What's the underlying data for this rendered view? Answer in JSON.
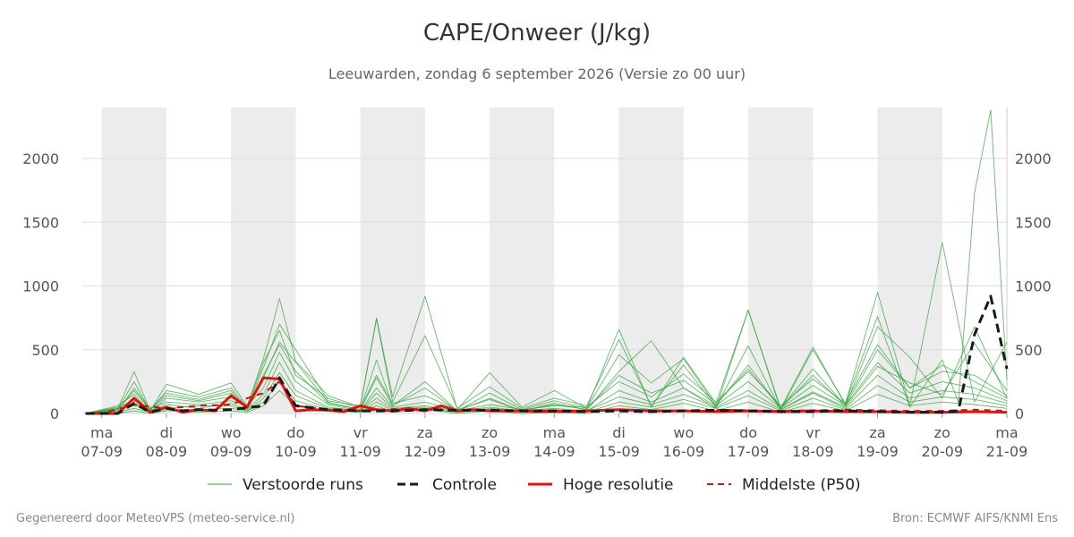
{
  "title": "CAPE/Onweer (J/kg)",
  "subtitle": "Leeuwarden, zondag  6 september 2026 (Versie zo 00 uur)",
  "footer": {
    "left": "Gegenereerd door MeteoVPS (meteo-service.nl)",
    "right": "Bron: ECMWF AIFS/KNMI Ens"
  },
  "colors": {
    "ensemble": "#33a33a",
    "control": "#1a1a1a",
    "high_res": "#e3120b",
    "median": "#b81c1c",
    "weekend_band": "#ececec",
    "grid": "#dddddd"
  },
  "chart_data": {
    "type": "line",
    "title": "CAPE/Onweer (J/kg)",
    "ylim": [
      0,
      2400
    ],
    "y_ticks": [
      "0",
      "500",
      "1000",
      "1500",
      "2000"
    ],
    "x_unit": "days since 06-09 00:00",
    "xlim": [
      0.7,
      15.0
    ],
    "shaded_day_intervals": [
      [
        1,
        2
      ],
      [
        3,
        4
      ],
      [
        5,
        6
      ],
      [
        7,
        8
      ],
      [
        9,
        10
      ],
      [
        11,
        12
      ],
      [
        13,
        14
      ]
    ],
    "x_ticks": [
      {
        "day": "ma",
        "date": "07-09"
      },
      {
        "day": "di",
        "date": "08-09"
      },
      {
        "day": "wo",
        "date": "09-09"
      },
      {
        "day": "do",
        "date": "10-09"
      },
      {
        "day": "vr",
        "date": "11-09"
      },
      {
        "day": "za",
        "date": "12-09"
      },
      {
        "day": "zo",
        "date": "13-09"
      },
      {
        "day": "ma",
        "date": "14-09"
      },
      {
        "day": "di",
        "date": "15-09"
      },
      {
        "day": "wo",
        "date": "16-09"
      },
      {
        "day": "do",
        "date": "17-09"
      },
      {
        "day": "vr",
        "date": "18-09"
      },
      {
        "day": "za",
        "date": "19-09"
      },
      {
        "day": "zo",
        "date": "20-09"
      },
      {
        "day": "ma",
        "date": "21-09"
      }
    ],
    "legend": {
      "placement": "bottom",
      "items": [
        {
          "label": "Verstoorde runs",
          "style": "thin-green"
        },
        {
          "label": "Controle",
          "style": "black-dashed"
        },
        {
          "label": "Hoge resolutie",
          "style": "red-solid"
        },
        {
          "label": "Middelste (P50)",
          "style": "darkred-dashed"
        }
      ]
    },
    "series": [
      {
        "name": "Controle",
        "x": [
          0.75,
          1,
          1.25,
          1.5,
          1.75,
          2,
          2.25,
          2.5,
          2.75,
          3,
          3.25,
          3.5,
          3.75,
          4,
          4.5,
          5,
          5.5,
          6,
          6.5,
          7,
          7.5,
          8,
          8.5,
          9,
          9.5,
          10,
          10.5,
          11,
          11.5,
          12,
          12.5,
          13,
          13.5,
          14,
          14.25,
          14.5,
          14.75,
          15
        ],
        "y": [
          0,
          0,
          0,
          80,
          10,
          40,
          20,
          30,
          25,
          30,
          45,
          60,
          280,
          60,
          30,
          20,
          20,
          30,
          25,
          25,
          20,
          20,
          15,
          20,
          15,
          20,
          25,
          20,
          15,
          15,
          20,
          15,
          10,
          10,
          20,
          620,
          920,
          350
        ]
      },
      {
        "name": "Hoge resolutie",
        "x": [
          0.75,
          1,
          1.25,
          1.5,
          1.75,
          2,
          2.25,
          2.5,
          2.75,
          3,
          3.25,
          3.5,
          3.75,
          4,
          4.25,
          4.5,
          4.75,
          5,
          5.25,
          5.5,
          5.75,
          6,
          6.25,
          6.5,
          6.75,
          7,
          7.5,
          8,
          8.5,
          9,
          9.5,
          10,
          10.5,
          11,
          11.5,
          12,
          12.5,
          13,
          13.5,
          14,
          14.5,
          15
        ],
        "y": [
          0,
          0,
          0,
          120,
          10,
          50,
          10,
          30,
          20,
          140,
          50,
          280,
          270,
          20,
          30,
          25,
          15,
          60,
          30,
          20,
          40,
          20,
          60,
          20,
          30,
          20,
          20,
          15,
          20,
          30,
          20,
          20,
          15,
          20,
          15,
          20,
          15,
          15,
          10,
          10,
          15,
          10
        ]
      },
      {
        "name": "Middelste (P50)",
        "x": [
          0.75,
          1,
          1.5,
          2,
          2.5,
          3,
          3.25,
          3.5,
          3.75,
          4,
          4.5,
          5,
          5.5,
          6,
          6.5,
          7,
          7.5,
          8,
          8.5,
          9,
          9.5,
          10,
          10.5,
          11,
          11.5,
          12,
          12.5,
          13,
          13.5,
          14,
          14.5,
          15
        ],
        "y": [
          0,
          0,
          70,
          40,
          60,
          70,
          120,
          160,
          250,
          60,
          30,
          20,
          35,
          30,
          25,
          20,
          25,
          20,
          20,
          25,
          25,
          20,
          30,
          25,
          20,
          25,
          30,
          25,
          20,
          20,
          30,
          20
        ]
      }
    ],
    "ensemble_members": [
      {
        "x": [
          0.75,
          1.25,
          1.5,
          1.75,
          2,
          2.5,
          3,
          3.25,
          3.5,
          3.75,
          4,
          4.5,
          5,
          5.25,
          5.5,
          6,
          6.5,
          7,
          7.5,
          8,
          8.5,
          9,
          9.5,
          10,
          10.5,
          11,
          11.5,
          12,
          12.5,
          13,
          13.5,
          14,
          14.5,
          15
        ],
        "y": [
          0,
          40,
          330,
          20,
          230,
          150,
          240,
          60,
          430,
          900,
          410,
          140,
          50,
          750,
          130,
          920,
          30,
          320,
          50,
          180,
          40,
          660,
          50,
          440,
          80,
          810,
          40,
          520,
          70,
          950,
          60,
          1340,
          90,
          560
        ]
      },
      {
        "x": [
          0.75,
          1.25,
          1.5,
          1.75,
          2,
          2.5,
          3,
          3.25,
          3.5,
          3.75,
          4,
          4.5,
          5,
          5.25,
          5.5,
          6,
          6.5,
          7,
          7.5,
          8,
          8.5,
          9,
          9.5,
          10,
          10.5,
          11,
          11.5,
          12,
          12.5,
          13,
          13.5,
          14,
          14.25,
          14.5,
          14.75,
          15
        ],
        "y": [
          0,
          20,
          200,
          30,
          160,
          110,
          180,
          40,
          360,
          700,
          500,
          100,
          60,
          740,
          90,
          610,
          40,
          210,
          40,
          120,
          60,
          580,
          60,
          380,
          50,
          530,
          30,
          500,
          80,
          760,
          50,
          420,
          90,
          1730,
          2380,
          260
        ]
      },
      {
        "x": [
          0.75,
          1.25,
          1.5,
          1.75,
          2,
          2.5,
          3,
          3.25,
          3.5,
          3.75,
          4,
          4.5,
          5,
          5.25,
          5.5,
          6,
          6.5,
          7,
          7.5,
          8,
          8.5,
          9,
          9.5,
          10,
          10.5,
          11,
          11.5,
          12,
          12.5,
          13,
          13.5,
          14,
          14.5,
          15
        ],
        "y": [
          0,
          60,
          150,
          10,
          120,
          90,
          130,
          40,
          280,
          560,
          400,
          90,
          30,
          420,
          60,
          250,
          20,
          160,
          30,
          100,
          40,
          460,
          240,
          430,
          60,
          380,
          40,
          350,
          60,
          680,
          440,
          120,
          680,
          120
        ]
      },
      {
        "x": [
          0.75,
          1.25,
          1.5,
          1.75,
          2,
          2.5,
          3,
          3.25,
          3.5,
          3.75,
          4,
          4.5,
          5,
          5.25,
          5.5,
          6,
          6.5,
          7,
          7.5,
          8,
          8.5,
          9,
          9.5,
          10,
          10.5,
          11,
          11.5,
          12,
          12.5,
          13,
          13.5,
          14,
          14.5,
          15
        ],
        "y": [
          0,
          30,
          250,
          20,
          180,
          130,
          200,
          50,
          400,
          650,
          300,
          120,
          40,
          300,
          80,
          140,
          30,
          110,
          20,
          80,
          30,
          330,
          570,
          200,
          40,
          810,
          30,
          170,
          50,
          370,
          240,
          150,
          550,
          180
        ]
      },
      {
        "x": [
          0.75,
          1.25,
          1.5,
          1.75,
          2,
          2.5,
          3,
          3.25,
          3.5,
          3.75,
          4,
          4.5,
          5,
          5.25,
          5.5,
          6,
          6.5,
          7,
          7.5,
          8,
          8.5,
          9,
          9.5,
          10,
          10.5,
          11,
          11.5,
          12,
          12.5,
          13,
          13.5,
          14,
          14.5,
          15
        ],
        "y": [
          0,
          50,
          100,
          40,
          90,
          70,
          100,
          60,
          200,
          480,
          250,
          70,
          20,
          200,
          50,
          90,
          20,
          70,
          30,
          60,
          50,
          250,
          130,
          310,
          90,
          330,
          60,
          270,
          80,
          540,
          200,
          330,
          300,
          140
        ]
      },
      {
        "x": [
          0.75,
          1.25,
          1.5,
          1.75,
          2,
          2.5,
          3,
          3.25,
          3.5,
          3.75,
          4,
          4.5,
          5,
          5.25,
          5.5,
          6,
          6.5,
          7,
          7.5,
          8,
          8.5,
          9,
          9.5,
          10,
          10.5,
          11,
          11.5,
          12,
          12.5,
          13,
          13.5,
          14,
          14.5,
          15
        ],
        "y": [
          0,
          20,
          80,
          20,
          70,
          40,
          80,
          30,
          150,
          400,
          180,
          50,
          20,
          160,
          40,
          60,
          20,
          50,
          20,
          40,
          20,
          180,
          90,
          200,
          60,
          250,
          40,
          220,
          60,
          400,
          160,
          250,
          200,
          100
        ]
      },
      {
        "x": [
          0.75,
          1.25,
          1.5,
          1.75,
          2,
          2.5,
          3,
          3.25,
          3.5,
          3.75,
          4,
          4.5,
          5,
          5.25,
          5.5,
          6,
          6.5,
          7,
          7.5,
          8,
          8.5,
          9,
          9.5,
          10,
          10.5,
          11,
          11.5,
          12,
          12.5,
          13,
          13.5,
          14,
          14.5,
          15
        ],
        "y": [
          0,
          40,
          60,
          50,
          40,
          60,
          60,
          20,
          120,
          320,
          140,
          40,
          20,
          120,
          30,
          50,
          10,
          40,
          20,
          30,
          20,
          130,
          70,
          150,
          50,
          180,
          30,
          160,
          40,
          300,
          120,
          180,
          150,
          80
        ]
      },
      {
        "x": [
          0.75,
          1.25,
          1.5,
          1.75,
          2,
          2.5,
          3,
          3.25,
          3.5,
          3.75,
          4,
          4.5,
          5,
          5.25,
          5.5,
          6,
          6.5,
          7,
          7.5,
          8,
          8.5,
          9,
          9.5,
          10,
          10.5,
          11,
          11.5,
          12,
          12.5,
          13,
          13.5,
          14,
          14.5,
          15
        ],
        "y": [
          0,
          10,
          40,
          10,
          30,
          30,
          40,
          20,
          90,
          250,
          100,
          30,
          10,
          90,
          20,
          40,
          10,
          30,
          10,
          20,
          10,
          90,
          50,
          110,
          40,
          140,
          20,
          120,
          30,
          220,
          90,
          130,
          110,
          60
        ]
      },
      {
        "x": [
          0.75,
          1.25,
          1.5,
          1.75,
          2,
          2.5,
          3,
          3.25,
          3.5,
          3.75,
          4,
          4.5,
          5,
          5.25,
          5.5,
          6,
          6.5,
          7,
          7.5,
          8,
          8.5,
          9,
          9.5,
          10,
          10.5,
          11,
          11.5,
          12,
          12.5,
          13,
          13.5,
          14,
          14.5,
          15
        ],
        "y": [
          0,
          30,
          180,
          30,
          140,
          100,
          160,
          40,
          300,
          540,
          330,
          80,
          30,
          280,
          60,
          200,
          20,
          120,
          20,
          70,
          30,
          300,
          160,
          260,
          70,
          350,
          40,
          300,
          60,
          500,
          200,
          380,
          250,
          120
        ]
      },
      {
        "x": [
          0.75,
          1.25,
          1.5,
          1.75,
          2,
          2.5,
          3,
          3.25,
          3.5,
          3.75,
          4,
          4.5,
          5,
          5.25,
          5.5,
          6,
          6.5,
          7,
          7.5,
          8,
          8.5,
          9,
          9.5,
          10,
          10.5,
          11,
          11.5,
          12,
          12.5,
          13,
          13.5,
          14,
          14.5,
          15
        ],
        "y": [
          0,
          0,
          20,
          0,
          20,
          10,
          20,
          10,
          60,
          180,
          60,
          20,
          10,
          60,
          10,
          30,
          0,
          20,
          0,
          10,
          0,
          60,
          30,
          80,
          20,
          90,
          10,
          80,
          20,
          150,
          60,
          90,
          70,
          40
        ]
      }
    ]
  }
}
